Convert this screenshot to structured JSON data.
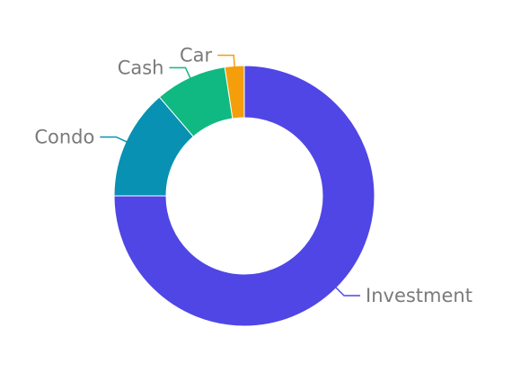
{
  "chart_data": {
    "type": "pie",
    "style": "donut",
    "title": "",
    "legend": "none",
    "categories": [
      "Investment",
      "Condo",
      "Cash",
      "Car"
    ],
    "values": [
      75,
      13.7,
      8.9,
      2.4
    ],
    "colors": [
      "#4f46e5",
      "#0891b2",
      "#10b981",
      "#f59e0b"
    ],
    "start_angle_deg": 0,
    "direction": "clockwise"
  }
}
